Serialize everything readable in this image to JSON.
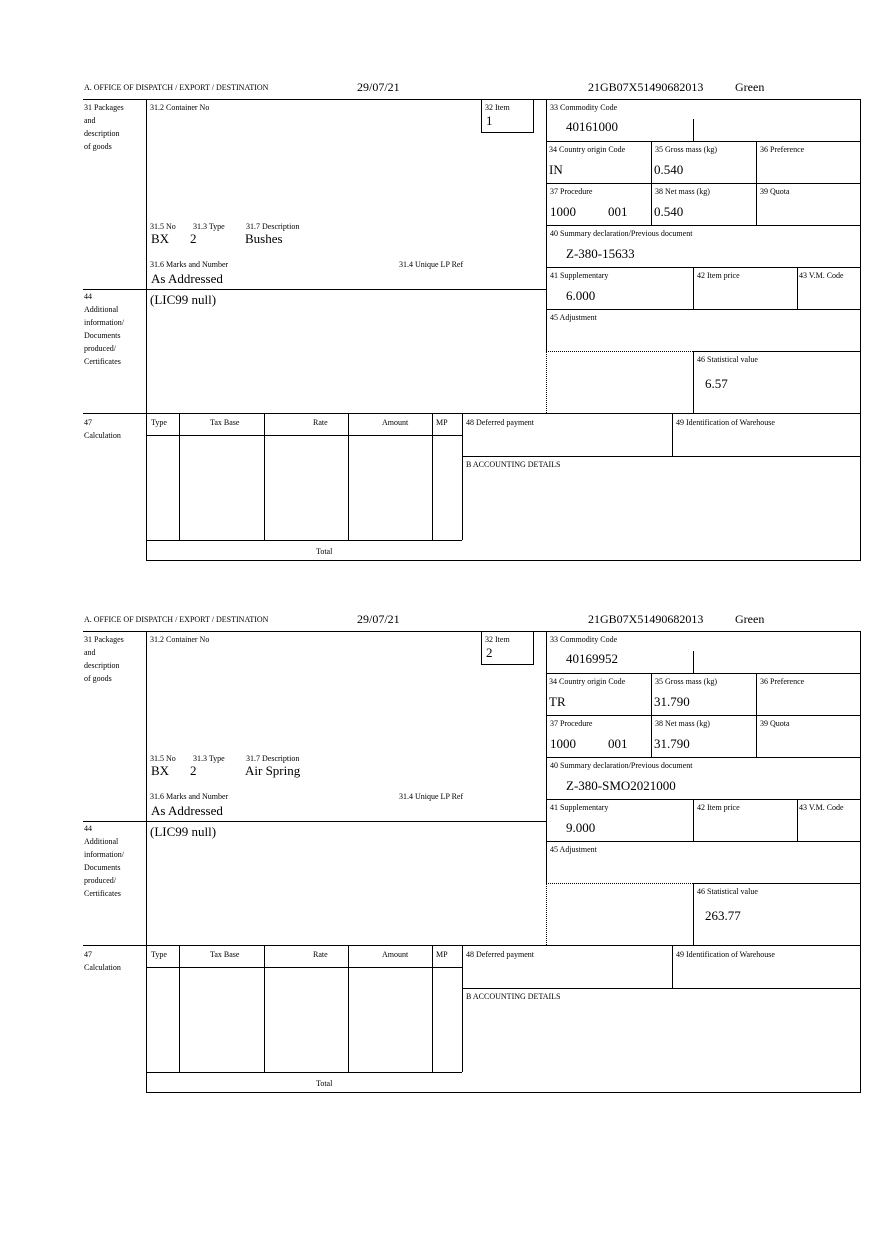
{
  "labels": {
    "office": "A.  OFFICE OF DISPATCH / EXPORT / DESTINATION",
    "packages": [
      "31 Packages",
      "and",
      "description",
      "of goods"
    ],
    "container_no": "31.2 Container No",
    "item": "32 Item",
    "commodity_code": "33 Commodity Code",
    "country_origin": "34 Country origin Code",
    "gross_mass": "35 Gross mass (kg)",
    "preference": "36 Preference",
    "procedure": "37 Procedure",
    "net_mass": "38 Net mass (kg)",
    "quota": "39 Quota",
    "summary_decl": "40 Summary declaration/Previous document",
    "supplementary": "41 Supplementary",
    "item_price": "42 Item price",
    "vm_code": "43 V.M. Code",
    "adjustment": "45 Adjustment",
    "statistical_value": "46 Statistical value",
    "no": "31.5 No",
    "type": "31.3 Type",
    "description": "31.7 Description",
    "marks": "31.6 Marks and Number",
    "unique_lp": "31.4 Unique LP Ref",
    "additional": [
      "44",
      "Additional",
      "information/",
      "Documents",
      "produced/",
      "Certificates"
    ],
    "calculation": [
      "47",
      "Calculation"
    ],
    "calc_cols": [
      "Type",
      "Tax Base",
      "Rate",
      "Amount",
      "MP"
    ],
    "total": "Total",
    "deferred_payment": "48 Deferred payment",
    "warehouse": "49 Identification of Warehouse",
    "accounting": "B ACCOUNTING DETAILS"
  },
  "items": [
    {
      "date": "29/07/21",
      "reference": "21GB07X51490682013",
      "route": "Green",
      "item_no": "1",
      "commodity_code": "40161000",
      "country_origin": "IN",
      "gross_mass": "0.540",
      "procedure": "1000",
      "procedure_extra": "001",
      "net_mass": "0.540",
      "summary_decl": "Z-380-15633",
      "supplementary": "6.000",
      "statistical_value": "6.57",
      "no": "BX",
      "type": "2",
      "description": "Bushes",
      "marks": "As Addressed",
      "additional": "(LIC99 null)"
    },
    {
      "date": "29/07/21",
      "reference": "21GB07X51490682013",
      "route": "Green",
      "item_no": "2",
      "commodity_code": "40169952",
      "country_origin": "TR",
      "gross_mass": "31.790",
      "procedure": "1000",
      "procedure_extra": "001",
      "net_mass": "31.790",
      "summary_decl": "Z-380-SMO2021000",
      "supplementary": "9.000",
      "statistical_value": "263.77",
      "no": "BX",
      "type": "2",
      "description": "Air Spring",
      "marks": "As Addressed",
      "additional": "(LIC99 null)"
    }
  ]
}
